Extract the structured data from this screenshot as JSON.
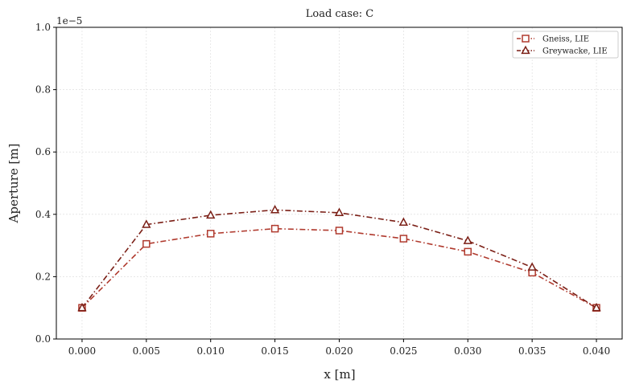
{
  "chart_data": {
    "type": "line",
    "title": "Load case: C",
    "xlabel": "x [m]",
    "ylabel": "Aperture [m]",
    "offset_text": "1e−5",
    "xlim": [
      -0.002,
      0.042
    ],
    "ylim": [
      0,
      1.0
    ],
    "x_ticks": [
      "0.000",
      "0.005",
      "0.010",
      "0.015",
      "0.020",
      "0.025",
      "0.030",
      "0.035",
      "0.040"
    ],
    "y_ticks": [
      "0.0",
      "0.2",
      "0.4",
      "0.6",
      "0.8",
      "1.0"
    ],
    "grid": true,
    "legend_position": "top-right",
    "x": [
      0.0,
      0.005,
      0.01,
      0.015,
      0.02,
      0.025,
      0.03,
      0.035,
      0.04
    ],
    "series": [
      {
        "name": "Gneiss, LIE",
        "marker": "square",
        "color": "#b03a2e",
        "values": [
          0.1,
          0.305,
          0.338,
          0.354,
          0.348,
          0.322,
          0.28,
          0.213,
          0.1
        ]
      },
      {
        "name": "Greywacke, LIE",
        "marker": "triangle",
        "color": "#7b1f16",
        "values": [
          0.1,
          0.367,
          0.397,
          0.414,
          0.405,
          0.374,
          0.315,
          0.23,
          0.1
        ]
      }
    ]
  }
}
